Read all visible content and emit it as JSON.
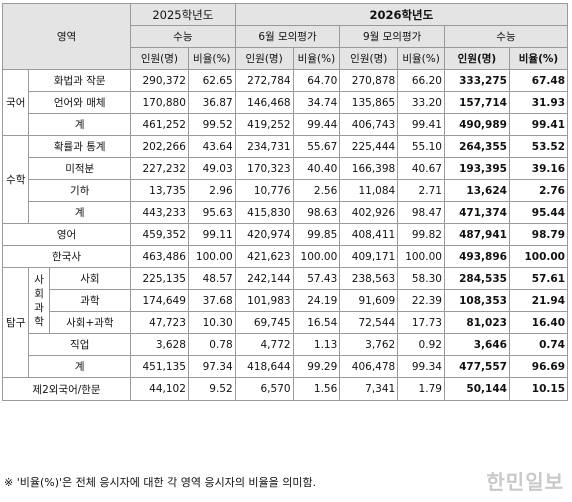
{
  "header": {
    "area_label": "영역",
    "year_2025": "2025학년도",
    "year_2026": "2026학년도",
    "exam_suneung": "수능",
    "exam_june": "6월 모의평가",
    "exam_sept": "9월 모의평가",
    "col_people": "인원(명)",
    "col_ratio": "비율(%)"
  },
  "rows": {
    "korean": {
      "label": "국어",
      "hwajak": {
        "name": "화법과 작문",
        "v": [
          "290,372",
          "62.65",
          "272,784",
          "64.70",
          "270,878",
          "66.20",
          "333,275",
          "67.48"
        ]
      },
      "unmae": {
        "name": "언어와 매체",
        "v": [
          "170,880",
          "36.87",
          "146,468",
          "34.74",
          "135,865",
          "33.20",
          "157,714",
          "31.93"
        ]
      },
      "total": {
        "name": "계",
        "v": [
          "461,252",
          "99.52",
          "419,252",
          "99.44",
          "406,743",
          "99.41",
          "490,989",
          "99.41"
        ]
      }
    },
    "math": {
      "label": "수학",
      "hwaktong": {
        "name": "확률과 통계",
        "v": [
          "202,266",
          "43.64",
          "234,731",
          "55.67",
          "225,444",
          "55.10",
          "264,355",
          "53.52"
        ]
      },
      "mijeok": {
        "name": "미적분",
        "v": [
          "227,232",
          "49.03",
          "170,323",
          "40.40",
          "166,398",
          "40.67",
          "193,395",
          "39.16"
        ]
      },
      "giha": {
        "name": "기하",
        "v": [
          "13,735",
          "2.96",
          "10,776",
          "2.56",
          "11,084",
          "2.71",
          "13,624",
          "2.76"
        ]
      },
      "total": {
        "name": "계",
        "v": [
          "443,233",
          "95.63",
          "415,830",
          "98.63",
          "402,926",
          "98.47",
          "471,374",
          "95.44"
        ]
      }
    },
    "english": {
      "name": "영어",
      "v": [
        "459,352",
        "99.11",
        "420,974",
        "99.85",
        "408,411",
        "99.82",
        "487,941",
        "98.79"
      ]
    },
    "history": {
      "name": "한국사",
      "v": [
        "463,486",
        "100.00",
        "421,623",
        "100.00",
        "409,171",
        "100.00",
        "493,896",
        "100.00"
      ]
    },
    "tamgu": {
      "label": "탐구",
      "group_label": "사회\n과학",
      "social": {
        "name": "사회",
        "v": [
          "225,135",
          "48.57",
          "242,144",
          "57.43",
          "238,563",
          "58.30",
          "284,535",
          "57.61"
        ]
      },
      "science": {
        "name": "과학",
        "v": [
          "174,649",
          "37.68",
          "101,983",
          "24.19",
          "91,609",
          "22.39",
          "108,353",
          "21.94"
        ]
      },
      "socsci": {
        "name": "사회+과학",
        "v": [
          "47,723",
          "10.30",
          "69,745",
          "16.54",
          "72,544",
          "17.73",
          "81,023",
          "16.40"
        ]
      },
      "job": {
        "name": "직업",
        "v": [
          "3,628",
          "0.78",
          "4,772",
          "1.13",
          "3,762",
          "0.92",
          "3,646",
          "0.74"
        ]
      },
      "total": {
        "name": "계",
        "v": [
          "451,135",
          "97.34",
          "418,644",
          "99.29",
          "406,478",
          "99.34",
          "477,557",
          "96.69"
        ]
      }
    },
    "lang2": {
      "name": "제2외국어/한문",
      "v": [
        "44,102",
        "9.52",
        "6,570",
        "1.56",
        "7,341",
        "1.79",
        "50,144",
        "10.15"
      ]
    }
  },
  "footnote": "※ '비율(%)'은 전체 응시자에 대한 각 영역 응시자의 비율을 의미함.",
  "watermark": "한민일보"
}
